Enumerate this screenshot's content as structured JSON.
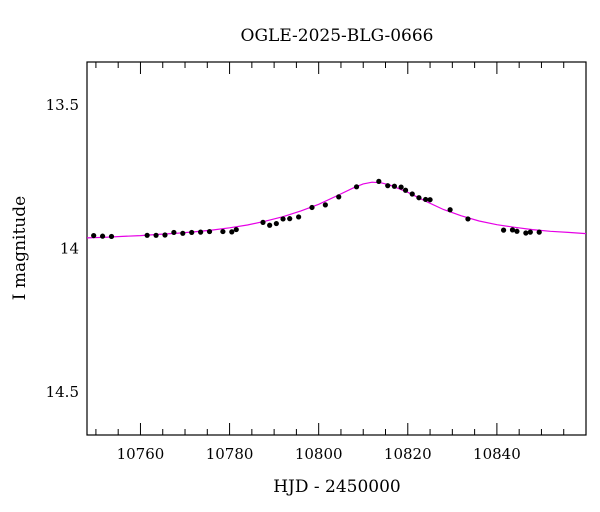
{
  "chart_data": {
    "type": "scatter",
    "title": "OGLE-2025-BLG-0666",
    "xlabel": "HJD - 2450000",
    "ylabel": "I magnitude",
    "xlim": [
      10748,
      10860
    ],
    "ylim": [
      13.35,
      14.65
    ],
    "y_inverted": true,
    "x_ticks": [
      10760,
      10780,
      10800,
      10820,
      10840
    ],
    "x_tick_labels": [
      "10760",
      "10780",
      "10800",
      "10820",
      "10840"
    ],
    "y_ticks": [
      13.5,
      14,
      14.5
    ],
    "y_tick_labels": [
      "13.5",
      "14",
      "14.5"
    ],
    "grid": false,
    "series": [
      {
        "kind": "points",
        "color": "#000000",
        "x": [
          10749.5,
          10751.5,
          10753.5,
          10761.5,
          10763.5,
          10765.5,
          10767.5,
          10769.5,
          10771.5,
          10773.5,
          10775.5,
          10778.5,
          10780.5,
          10781.5,
          10787.5,
          10789.0,
          10790.5,
          10792.0,
          10793.5,
          10795.5,
          10798.5,
          10801.5,
          10804.5,
          10808.5,
          10813.5,
          10815.5,
          10817.0,
          10818.5,
          10819.5,
          10821.0,
          10822.5,
          10824.0,
          10825.0,
          10829.5,
          10833.5,
          10841.5,
          10843.5,
          10844.5,
          10846.5,
          10847.5,
          10849.5
        ],
        "y": [
          13.955,
          13.957,
          13.958,
          13.954,
          13.954,
          13.953,
          13.944,
          13.947,
          13.944,
          13.943,
          13.941,
          13.941,
          13.942,
          13.934,
          13.909,
          13.919,
          13.913,
          13.897,
          13.896,
          13.89,
          13.857,
          13.848,
          13.82,
          13.785,
          13.766,
          13.781,
          13.783,
          13.786,
          13.797,
          13.81,
          13.823,
          13.829,
          13.83,
          13.865,
          13.897,
          13.936,
          13.935,
          13.94,
          13.946,
          13.943,
          13.943
        ]
      },
      {
        "kind": "model",
        "color": "#e600e6",
        "x": [
          10748,
          10752,
          10756,
          10760,
          10764,
          10768,
          10772,
          10776,
          10780,
          10784,
          10788,
          10792,
          10796,
          10800,
          10804,
          10808,
          10810,
          10812,
          10814,
          10816,
          10820,
          10824,
          10828,
          10832,
          10836,
          10840,
          10844,
          10848,
          10852,
          10856,
          10860
        ],
        "y": [
          13.963,
          13.961,
          13.958,
          13.955,
          13.951,
          13.947,
          13.942,
          13.936,
          13.928,
          13.918,
          13.905,
          13.889,
          13.869,
          13.846,
          13.817,
          13.787,
          13.775,
          13.769,
          13.771,
          13.779,
          13.804,
          13.835,
          13.864,
          13.886,
          13.904,
          13.917,
          13.926,
          13.934,
          13.94,
          13.944,
          13.948
        ]
      }
    ]
  }
}
